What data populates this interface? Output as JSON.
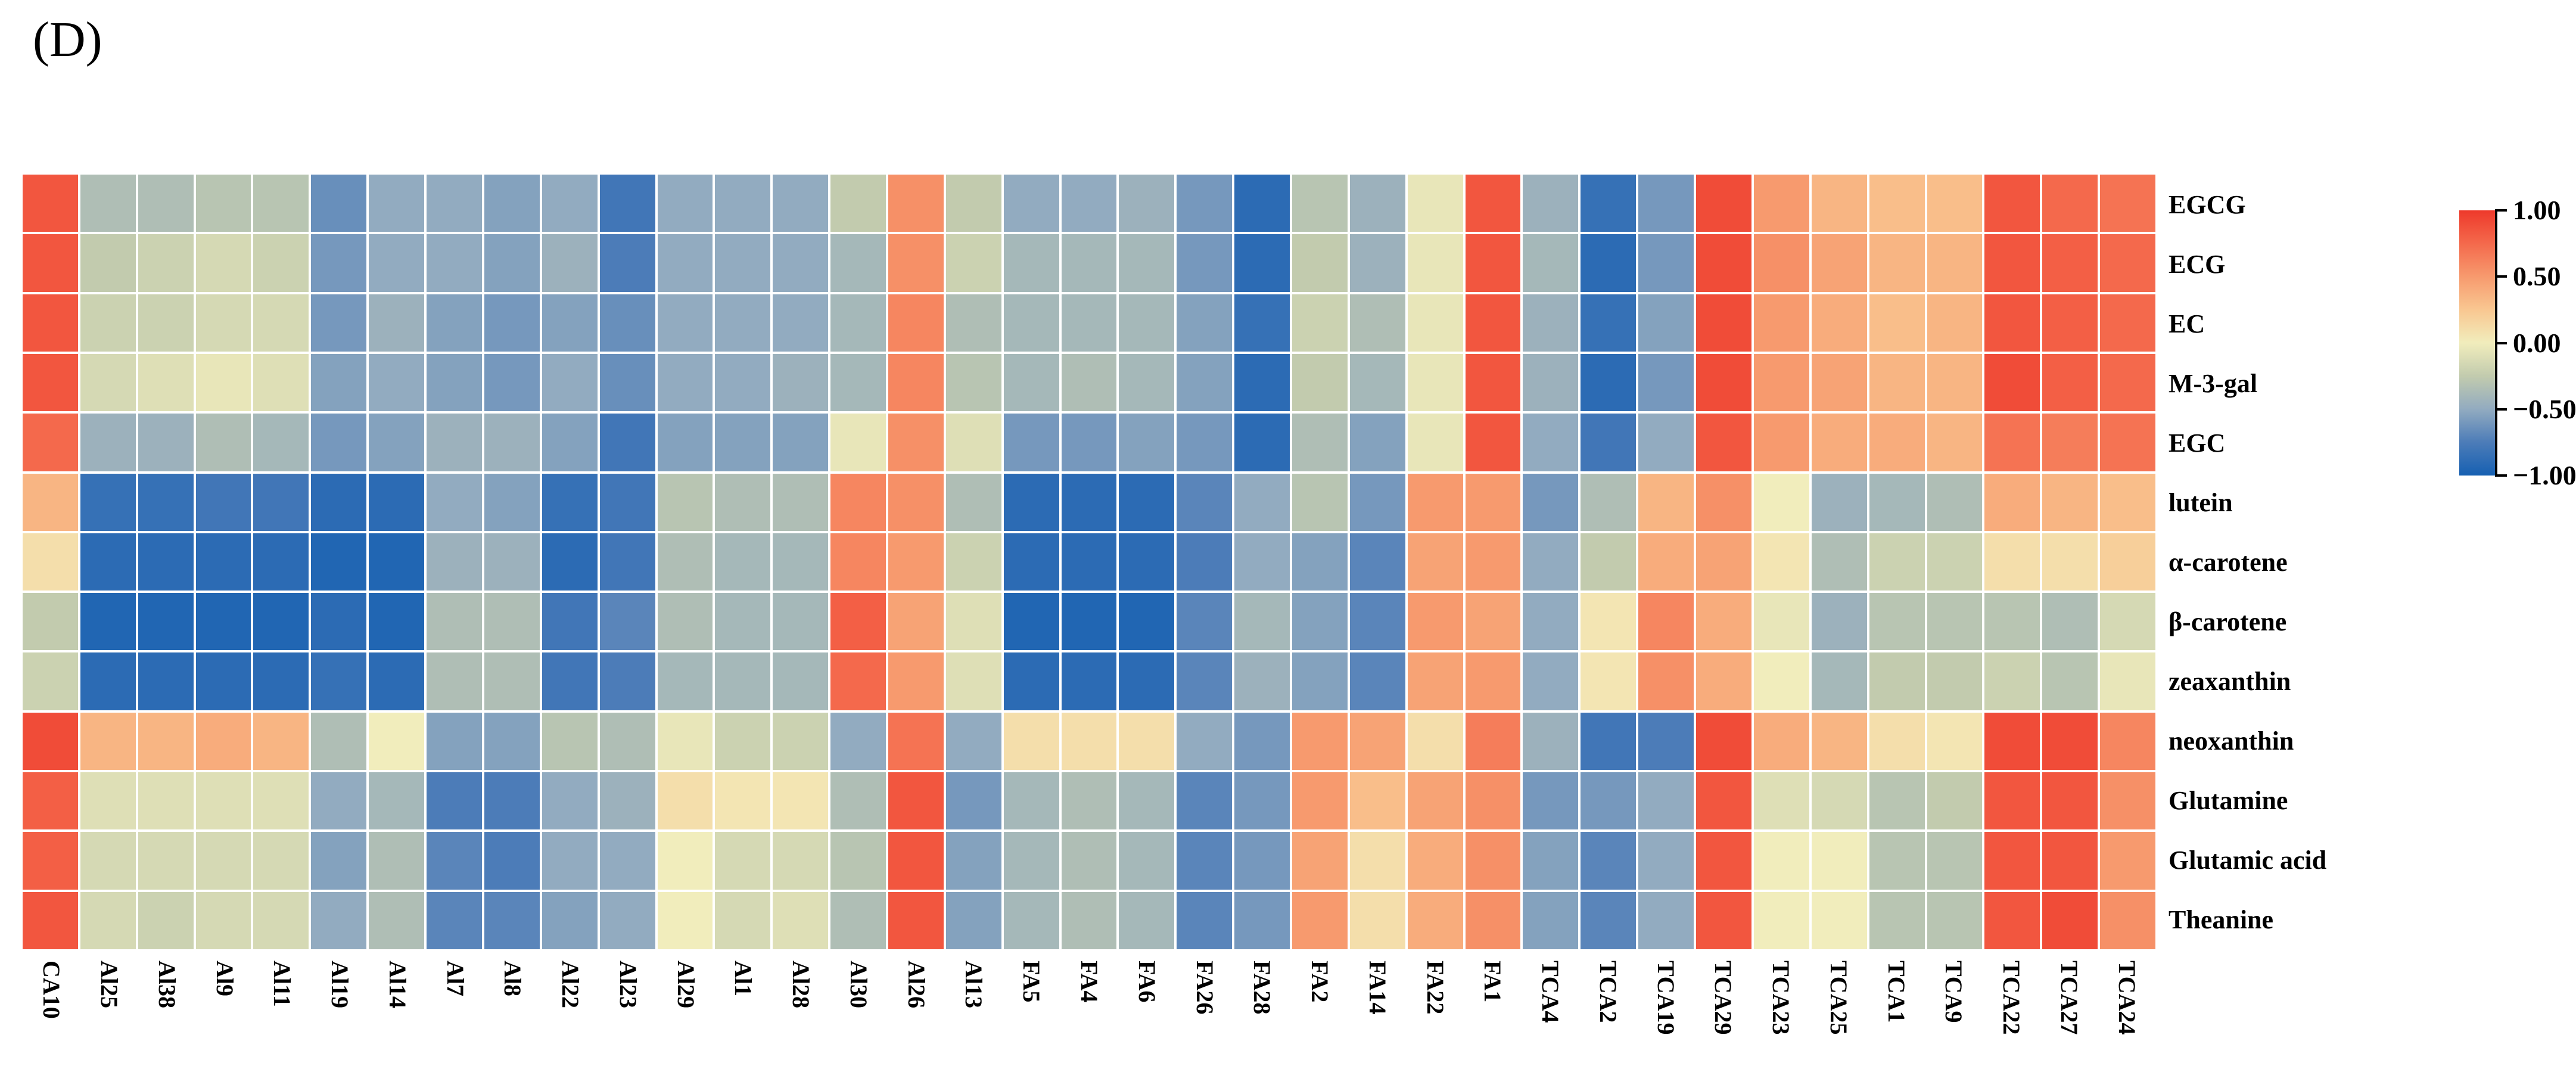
{
  "figure": {
    "panel_label": "(D)"
  },
  "chart_data": {
    "type": "heatmap",
    "title": "",
    "xlabel": "",
    "ylabel": "",
    "grid": false,
    "legend_position": "right-colorbar",
    "columns": [
      "CA10",
      "Al25",
      "Al38",
      "Al9",
      "Al11",
      "Al19",
      "Al14",
      "Al7",
      "Al8",
      "Al22",
      "Al23",
      "Al29",
      "Al1",
      "Al28",
      "Al30",
      "Al26",
      "Al13",
      "FA5",
      "FA4",
      "FA6",
      "FA26",
      "FA28",
      "FA2",
      "FA14",
      "FA22",
      "FA1",
      "TCA4",
      "TCA2",
      "TCA19",
      "TCA29",
      "TCA23",
      "TCA25",
      "TCA1",
      "TCA9",
      "TCA22",
      "TCA27",
      "TCA24"
    ],
    "rows": [
      "EGCG",
      "ECG",
      "EC",
      "M-3-gal",
      "EGC",
      "lutein",
      "α-carotene",
      "β-carotene",
      "zeaxanthin",
      "neoxanthin",
      "Glutamine",
      "Glutamic acid",
      "Theanine"
    ],
    "values": [
      [
        0.85,
        -0.35,
        -0.35,
        -0.3,
        -0.3,
        -0.65,
        -0.5,
        -0.5,
        -0.55,
        -0.5,
        -0.8,
        -0.5,
        -0.5,
        -0.5,
        -0.25,
        0.55,
        -0.25,
        -0.5,
        -0.5,
        -0.45,
        -0.6,
        -0.9,
        -0.3,
        -0.45,
        -0.05,
        0.85,
        -0.45,
        -0.85,
        -0.6,
        0.9,
        0.5,
        0.35,
        0.3,
        0.3,
        0.85,
        0.75,
        0.7
      ],
      [
        0.85,
        -0.25,
        -0.2,
        -0.15,
        -0.2,
        -0.6,
        -0.5,
        -0.5,
        -0.55,
        -0.45,
        -0.75,
        -0.5,
        -0.5,
        -0.5,
        -0.4,
        0.55,
        -0.2,
        -0.4,
        -0.4,
        -0.4,
        -0.6,
        -0.9,
        -0.25,
        -0.45,
        -0.05,
        0.85,
        -0.4,
        -0.9,
        -0.6,
        0.9,
        0.55,
        0.45,
        0.35,
        0.35,
        0.85,
        0.8,
        0.75
      ],
      [
        0.85,
        -0.2,
        -0.2,
        -0.15,
        -0.15,
        -0.6,
        -0.45,
        -0.55,
        -0.6,
        -0.55,
        -0.65,
        -0.5,
        -0.5,
        -0.5,
        -0.4,
        0.6,
        -0.35,
        -0.4,
        -0.4,
        -0.4,
        -0.55,
        -0.85,
        -0.2,
        -0.35,
        -0.05,
        0.85,
        -0.45,
        -0.85,
        -0.55,
        0.9,
        0.5,
        0.4,
        0.3,
        0.35,
        0.85,
        0.8,
        0.75
      ],
      [
        0.85,
        -0.15,
        -0.1,
        -0.05,
        -0.1,
        -0.55,
        -0.5,
        -0.55,
        -0.6,
        -0.5,
        -0.65,
        -0.5,
        -0.5,
        -0.45,
        -0.4,
        0.6,
        -0.3,
        -0.4,
        -0.35,
        -0.4,
        -0.55,
        -0.9,
        -0.25,
        -0.4,
        -0.05,
        0.85,
        -0.45,
        -0.9,
        -0.6,
        0.9,
        0.5,
        0.45,
        0.35,
        0.35,
        0.9,
        0.8,
        0.75
      ],
      [
        0.75,
        -0.45,
        -0.45,
        -0.35,
        -0.4,
        -0.6,
        -0.55,
        -0.45,
        -0.45,
        -0.55,
        -0.8,
        -0.55,
        -0.55,
        -0.55,
        -0.05,
        0.55,
        -0.1,
        -0.6,
        -0.6,
        -0.55,
        -0.6,
        -0.9,
        -0.35,
        -0.55,
        -0.05,
        0.85,
        -0.5,
        -0.8,
        -0.5,
        0.85,
        0.5,
        0.4,
        0.4,
        0.35,
        0.7,
        0.65,
        0.7
      ],
      [
        0.35,
        -0.85,
        -0.85,
        -0.8,
        -0.8,
        -0.9,
        -0.9,
        -0.5,
        -0.55,
        -0.85,
        -0.8,
        -0.3,
        -0.35,
        -0.35,
        0.6,
        0.55,
        -0.35,
        -0.9,
        -0.9,
        -0.9,
        -0.7,
        -0.5,
        -0.3,
        -0.6,
        0.5,
        0.5,
        -0.6,
        -0.35,
        0.35,
        0.55,
        0.0,
        -0.45,
        -0.4,
        -0.35,
        0.4,
        0.35,
        0.3
      ],
      [
        0.1,
        -0.9,
        -0.9,
        -0.9,
        -0.9,
        -0.95,
        -0.95,
        -0.45,
        -0.45,
        -0.9,
        -0.8,
        -0.35,
        -0.4,
        -0.4,
        0.6,
        0.5,
        -0.2,
        -0.9,
        -0.9,
        -0.9,
        -0.75,
        -0.5,
        -0.55,
        -0.7,
        0.45,
        0.5,
        -0.5,
        -0.25,
        0.4,
        0.45,
        0.05,
        -0.35,
        -0.2,
        -0.2,
        0.1,
        0.1,
        0.2
      ],
      [
        -0.25,
        -0.95,
        -0.95,
        -0.95,
        -0.95,
        -0.9,
        -0.95,
        -0.35,
        -0.35,
        -0.8,
        -0.7,
        -0.35,
        -0.4,
        -0.4,
        0.8,
        0.45,
        -0.1,
        -0.95,
        -0.95,
        -0.95,
        -0.7,
        -0.4,
        -0.55,
        -0.7,
        0.5,
        0.45,
        -0.5,
        0.05,
        0.6,
        0.4,
        -0.05,
        -0.45,
        -0.3,
        -0.3,
        -0.3,
        -0.35,
        -0.15
      ],
      [
        -0.2,
        -0.9,
        -0.9,
        -0.9,
        -0.9,
        -0.85,
        -0.9,
        -0.35,
        -0.35,
        -0.8,
        -0.75,
        -0.4,
        -0.4,
        -0.4,
        0.75,
        0.5,
        -0.1,
        -0.9,
        -0.9,
        -0.9,
        -0.7,
        -0.45,
        -0.55,
        -0.7,
        0.45,
        0.5,
        -0.5,
        0.05,
        0.55,
        0.4,
        0.0,
        -0.4,
        -0.25,
        -0.25,
        -0.2,
        -0.3,
        -0.05
      ],
      [
        0.9,
        0.35,
        0.35,
        0.4,
        0.35,
        -0.35,
        0.0,
        -0.55,
        -0.55,
        -0.3,
        -0.35,
        -0.05,
        -0.2,
        -0.2,
        -0.5,
        0.7,
        -0.5,
        0.1,
        0.1,
        0.1,
        -0.5,
        -0.6,
        0.5,
        0.45,
        0.1,
        0.65,
        -0.45,
        -0.8,
        -0.75,
        0.9,
        0.4,
        0.35,
        0.1,
        0.05,
        0.9,
        0.9,
        0.6
      ],
      [
        0.8,
        -0.1,
        -0.1,
        -0.1,
        -0.1,
        -0.5,
        -0.4,
        -0.75,
        -0.75,
        -0.5,
        -0.45,
        0.1,
        0.05,
        0.05,
        -0.35,
        0.85,
        -0.6,
        -0.4,
        -0.35,
        -0.4,
        -0.7,
        -0.6,
        0.5,
        0.3,
        0.45,
        0.55,
        -0.6,
        -0.6,
        -0.5,
        0.85,
        -0.1,
        -0.15,
        -0.3,
        -0.25,
        0.85,
        0.85,
        0.55
      ],
      [
        0.8,
        -0.15,
        -0.15,
        -0.15,
        -0.15,
        -0.55,
        -0.35,
        -0.7,
        -0.75,
        -0.5,
        -0.5,
        0.0,
        -0.15,
        -0.15,
        -0.3,
        0.85,
        -0.55,
        -0.4,
        -0.35,
        -0.4,
        -0.7,
        -0.6,
        0.45,
        0.1,
        0.4,
        0.55,
        -0.55,
        -0.7,
        -0.5,
        0.85,
        0.0,
        0.0,
        -0.3,
        -0.3,
        0.85,
        0.85,
        0.5
      ],
      [
        0.85,
        -0.15,
        -0.2,
        -0.15,
        -0.15,
        -0.5,
        -0.35,
        -0.7,
        -0.7,
        -0.55,
        -0.5,
        0.0,
        -0.15,
        -0.1,
        -0.35,
        0.85,
        -0.55,
        -0.4,
        -0.35,
        -0.4,
        -0.7,
        -0.6,
        0.5,
        0.1,
        0.4,
        0.55,
        -0.55,
        -0.7,
        -0.5,
        0.85,
        0.0,
        0.0,
        -0.3,
        -0.3,
        0.85,
        0.9,
        0.55
      ]
    ],
    "value_range": [
      -1.0,
      1.0
    ],
    "colorbar": {
      "tick_labels": [
        "1.00",
        "0.50",
        "0.00",
        "−0.50",
        "−1.00"
      ],
      "tick_values": [
        1.0,
        0.5,
        0.0,
        -0.5,
        -1.0
      ]
    },
    "colormap": {
      "cell_gap_color": "#ffffff",
      "anchors": [
        {
          "v": 1.0,
          "color": "#ee392b"
        },
        {
          "v": 0.75,
          "color": "#f4694c"
        },
        {
          "v": 0.5,
          "color": "#f79a6e"
        },
        {
          "v": 0.25,
          "color": "#f9c791"
        },
        {
          "v": 0.0,
          "color": "#f1edbc"
        },
        {
          "v": -0.25,
          "color": "#c2cbae"
        },
        {
          "v": -0.5,
          "color": "#92abc0"
        },
        {
          "v": -0.75,
          "color": "#4c7cb8"
        },
        {
          "v": -1.0,
          "color": "#1660b2"
        }
      ]
    }
  }
}
